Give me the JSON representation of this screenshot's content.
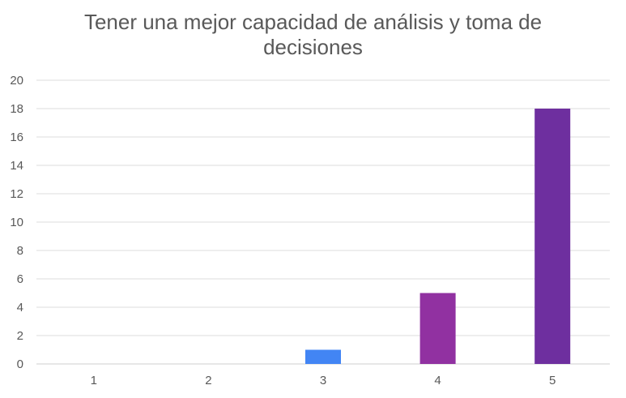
{
  "chart_data": {
    "type": "bar",
    "title": "Tener una mejor capacidad de análisis y toma de decisiones",
    "categories": [
      "1",
      "2",
      "3",
      "4",
      "5"
    ],
    "values": [
      0,
      0,
      1,
      5,
      18
    ],
    "bar_colors": [
      "#4285f4",
      "#4285f4",
      "#4285f4",
      "#9131a1",
      "#6e2f9f"
    ],
    "xlabel": "",
    "ylabel": "",
    "ylim": [
      0,
      20
    ],
    "yticks": [
      "0",
      "2",
      "4",
      "6",
      "8",
      "10",
      "12",
      "14",
      "16",
      "18",
      "20"
    ],
    "grid": true,
    "legend": "none"
  }
}
